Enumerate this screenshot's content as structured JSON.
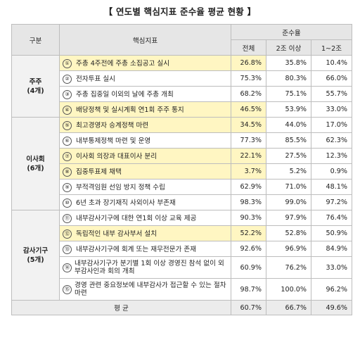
{
  "title": "【 연도별 핵심지표 준수율 평균 현황 】",
  "header": {
    "category": "구분",
    "indicator": "핵심지표",
    "compliance": "준수율",
    "all": "전체",
    "over2": "2조 이상",
    "mid": "1~2조"
  },
  "groups": [
    {
      "name": "주주",
      "count": "(4개)",
      "rows": [
        {
          "no": "①",
          "text": "주총 4주전에 주총 소집공고 실시",
          "all": "26.8%",
          "over2": "35.8%",
          "mid": "10.4%",
          "highlight": true
        },
        {
          "no": "②",
          "text": "전자투표 실시",
          "all": "75.3%",
          "over2": "80.3%",
          "mid": "66.0%",
          "highlight": false
        },
        {
          "no": "③",
          "text": "주총 집중일 이외의 날에 주총 개최",
          "all": "68.2%",
          "over2": "75.1%",
          "mid": "55.7%",
          "highlight": false
        },
        {
          "no": "④",
          "text": "배당정책 및 실시계획 연1회 주주 통지",
          "all": "46.5%",
          "over2": "53.9%",
          "mid": "33.0%",
          "highlight": true
        }
      ]
    },
    {
      "name": "이사회",
      "count": "(6개)",
      "rows": [
        {
          "no": "⑤",
          "text": "최고경영자 승계정책 마련",
          "all": "34.5%",
          "over2": "44.0%",
          "mid": "17.0%",
          "highlight": true
        },
        {
          "no": "⑥",
          "text": "내부통제정책 마련 및 운영",
          "all": "77.3%",
          "over2": "85.5%",
          "mid": "62.3%",
          "highlight": false
        },
        {
          "no": "⑦",
          "text": "이사회 의장과 대표이사 분리",
          "all": "22.1%",
          "over2": "27.5%",
          "mid": "12.3%",
          "highlight": true
        },
        {
          "no": "⑧",
          "text": "집중투표제 채택",
          "all": "3.7%",
          "over2": "5.2%",
          "mid": "0.9%",
          "highlight": true
        },
        {
          "no": "⑨",
          "text": "부적격임원 선임 방지 정책 수립",
          "all": "62.9%",
          "over2": "71.0%",
          "mid": "48.1%",
          "highlight": false
        },
        {
          "no": "⑩",
          "text": "6년 초과 장기재직 사외이사 부존재",
          "all": "98.3%",
          "over2": "99.0%",
          "mid": "97.2%",
          "highlight": false
        }
      ]
    },
    {
      "name": "감사기구",
      "count": "(5개)",
      "rows": [
        {
          "no": "⑪",
          "text": "내부감사기구에 대한 연1회 이상 교육 제공",
          "all": "90.3%",
          "over2": "97.9%",
          "mid": "76.4%",
          "highlight": false
        },
        {
          "no": "⑫",
          "text": "독립적인 내부 감사부서 설치",
          "all": "52.2%",
          "over2": "52.8%",
          "mid": "50.9%",
          "highlight": true
        },
        {
          "no": "⑬",
          "text": "내부감사기구에 회계 또는 재무전문가 존재",
          "all": "92.6%",
          "over2": "96.9%",
          "mid": "84.9%",
          "highlight": false
        },
        {
          "no": "⑭",
          "text": "내부감사기구가 분기별 1회 이상 경영진 참석 없이 외부감사인과 회의 개최",
          "all": "60.9%",
          "over2": "76.2%",
          "mid": "33.0%",
          "highlight": false,
          "two_line": true
        },
        {
          "no": "⑮",
          "text": "경영 관련 중요정보에 내부감사가 접근할 수 있는 절차 마련",
          "all": "98.7%",
          "over2": "100.0%",
          "mid": "96.2%",
          "highlight": false,
          "two_line": true
        }
      ]
    }
  ],
  "average": {
    "label": "평 균",
    "all": "60.7%",
    "over2": "66.7%",
    "mid": "49.6%"
  }
}
